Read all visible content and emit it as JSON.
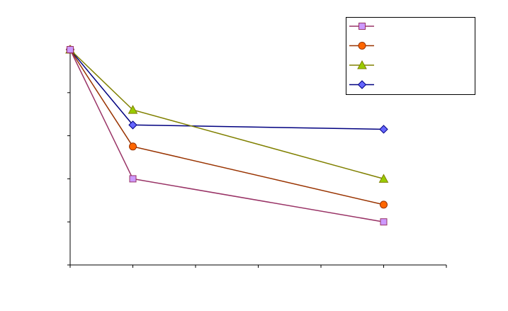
{
  "chart_data": {
    "type": "line",
    "x": [
      0,
      1,
      5
    ],
    "xlim": [
      0,
      6
    ],
    "xticks": [
      0,
      1,
      2,
      3,
      4,
      5,
      6
    ],
    "ylim": [
      0,
      5
    ],
    "yticks": [
      0,
      1,
      2,
      3,
      4,
      5
    ],
    "legend": "top-right",
    "series": [
      {
        "color": "#993366",
        "marker": "square",
        "marker_color": "#cc99ff",
        "values": [
          5,
          2.0,
          1.0
        ]
      },
      {
        "color": "#993300",
        "marker": "circle",
        "marker_color": "#ff6600",
        "values": [
          5,
          2.75,
          1.4
        ]
      },
      {
        "color": "#808000",
        "marker": "triangle",
        "marker_color": "#99cc00",
        "values": [
          5,
          3.6,
          2.0
        ]
      },
      {
        "color": "#000080",
        "marker": "diamond",
        "marker_color": "#6666ff",
        "values": [
          5,
          3.25,
          3.15
        ]
      }
    ]
  }
}
